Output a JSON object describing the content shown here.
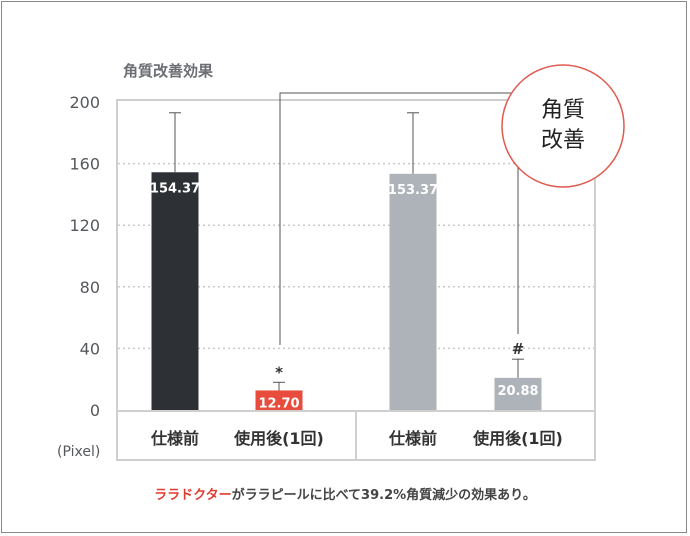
{
  "chart_data": {
    "type": "bar",
    "title": "角質改善効果",
    "unit_label": "(Pixel)",
    "ylim": [
      0,
      200
    ],
    "yticks": [
      "0",
      "40",
      "80",
      "120",
      "160",
      "200"
    ],
    "categories": [
      "仕様前",
      "使用後(1回)",
      "仕様前",
      "使用後(1回)"
    ],
    "values": [
      154.37,
      12.7,
      153.37,
      20.88
    ],
    "value_labels": [
      "154.37",
      "12.70",
      "153.37",
      "20.88"
    ],
    "error_tops": [
      193,
      18,
      193,
      33
    ],
    "marks": [
      "",
      "*",
      "",
      "#"
    ],
    "colors": [
      "#2d3135",
      "#e74c3c",
      "#adb3b9",
      "#adb3b9"
    ],
    "grid": true,
    "badge": [
      "角質",
      "改善"
    ]
  },
  "footer": {
    "brand": "ララドクター",
    "text": "がララピールに比べて39.2%角質減少の効果あり。"
  }
}
